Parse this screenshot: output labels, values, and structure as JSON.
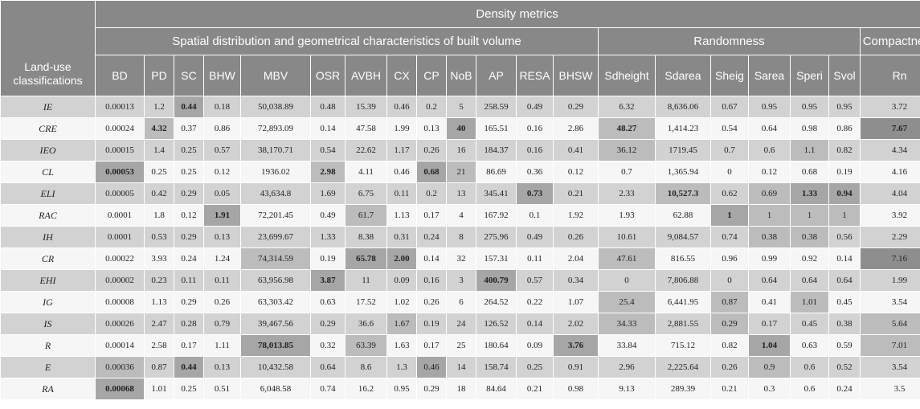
{
  "header": {
    "group_title": "Density metrics",
    "subgroups": {
      "spatial": "Spatial distribution and geometrical characteristics of built volume",
      "randomness": "Randomness",
      "compactness": "Compactness"
    },
    "landuse_label": "Land-use classifications",
    "columns": [
      "BD",
      "PD",
      "SC",
      "BHW",
      "MBV",
      "OSR",
      "AVBH",
      "CX",
      "CP",
      "NoB",
      "AP",
      "RESA",
      "BHSW",
      "Sdheight",
      "Sdarea",
      "Sheig",
      "Sarea",
      "Speri",
      "Svol",
      "Rn"
    ]
  },
  "rows": [
    {
      "label": "IE",
      "cells": [
        "0.00013",
        "1.2",
        "0.44",
        "0.18",
        "50,038.89",
        "0.48",
        "15.39",
        "0.46",
        "0.2",
        "5",
        "258.59",
        "0.49",
        "0.29",
        "6.32",
        "8,636.06",
        "0.67",
        "0.95",
        "0.95",
        "0.95",
        "3.72"
      ]
    },
    {
      "label": "CRE",
      "cells": [
        "0.00024",
        "4.32",
        "0.37",
        "0.86",
        "72,893.09",
        "0.14",
        "47.58",
        "1.99",
        "0.13",
        "40",
        "165.51",
        "0.16",
        "2.86",
        "48.27",
        "1,414.23",
        "0.54",
        "0.64",
        "0.98",
        "0.86",
        "7.67"
      ]
    },
    {
      "label": "IEO",
      "cells": [
        "0.00015",
        "1.4",
        "0.25",
        "0.57",
        "38,170.71",
        "0.54",
        "22.62",
        "1.17",
        "0.26",
        "16",
        "184.37",
        "0.16",
        "0.41",
        "36.12",
        "1719.45",
        "0.7",
        "0.6",
        "1.1",
        "0.82",
        "4.34"
      ]
    },
    {
      "label": "CL",
      "cells": [
        "0.00053",
        "0.25",
        "0.25",
        "0.12",
        "1936.02",
        "2.98",
        "4.11",
        "0.46",
        "0.68",
        "21",
        "86.69",
        "0.36",
        "0.12",
        "0.7",
        "1,365.94",
        "0",
        "0.12",
        "0.68",
        "0.19",
        "4.16"
      ]
    },
    {
      "label": "ELI",
      "cells": [
        "0.00005",
        "0.42",
        "0.29",
        "0.05",
        "43,634.8",
        "1.69",
        "6.75",
        "0.11",
        "0.2",
        "13",
        "345.41",
        "0.73",
        "0.21",
        "2.33",
        "10,527.3",
        "0.62",
        "0.69",
        "1.33",
        "0.94",
        "4.04"
      ]
    },
    {
      "label": "RAC",
      "cells": [
        "0.0001",
        "1.8",
        "0.12",
        "1.91",
        "72,201.45",
        "0.49",
        "61.7",
        "1.13",
        "0.17",
        "4",
        "167.92",
        "0.1",
        "1.92",
        "1.93",
        "62.88",
        "1",
        "1",
        "1",
        "1",
        "3.92"
      ]
    },
    {
      "label": "IH",
      "cells": [
        "0.0001",
        "0.53",
        "0.29",
        "0.13",
        "23,699.67",
        "1.33",
        "8.38",
        "0.31",
        "0.24",
        "8",
        "275.96",
        "0.49",
        "0.26",
        "10.61",
        "9,084.57",
        "0.74",
        "0.38",
        "0.38",
        "0.56",
        "2.29"
      ]
    },
    {
      "label": "CR",
      "cells": [
        "0.00022",
        "3.93",
        "0.24",
        "1.24",
        "74,314.59",
        "0.19",
        "65.78",
        "2.00",
        "0.14",
        "32",
        "157.31",
        "0.11",
        "2.04",
        "47.61",
        "816.55",
        "0.96",
        "0.99",
        "0.92",
        "0.14",
        "7.16"
      ]
    },
    {
      "label": "EHI",
      "cells": [
        "0.00002",
        "0.23",
        "0.11",
        "0.11",
        "63,956.98",
        "3.87",
        "11",
        "0.09",
        "0.16",
        "3",
        "400.79",
        "0.57",
        "0.34",
        "0",
        "7,806.88",
        "0",
        "0.64",
        "0.64",
        "0.64",
        "1.99"
      ]
    },
    {
      "label": "IG",
      "cells": [
        "0.00008",
        "1.13",
        "0.29",
        "0.26",
        "63,303.42",
        "0.63",
        "17.52",
        "1.02",
        "0.26",
        "6",
        "264.52",
        "0.22",
        "1.07",
        "25.4",
        "6,441.95",
        "0.87",
        "0.41",
        "1.01",
        "0.45",
        "3.54"
      ]
    },
    {
      "label": "IS",
      "cells": [
        "0.00026",
        "2.47",
        "0.28",
        "0.79",
        "39,467.56",
        "0.29",
        "36.6",
        "1.67",
        "0.19",
        "24",
        "126.52",
        "0.14",
        "2.02",
        "34.33",
        "2,881.55",
        "0.29",
        "0.17",
        "0.45",
        "0.38",
        "5.64"
      ]
    },
    {
      "label": "R",
      "cells": [
        "0.00014",
        "2.58",
        "0.17",
        "1.11",
        "78,013.85",
        "0.32",
        "63.39",
        "1.63",
        "0.17",
        "25",
        "180.64",
        "0.09",
        "3.76",
        "33.84",
        "715.12",
        "0.82",
        "1.04",
        "0.63",
        "0.59",
        "7.01"
      ]
    },
    {
      "label": "E",
      "cells": [
        "0.00036",
        "0.87",
        "0.44",
        "0.13",
        "10,432.58",
        "0.64",
        "8.6",
        "1.3",
        "0.46",
        "14",
        "158.74",
        "0.25",
        "0.91",
        "2.96",
        "2,225.64",
        "0.26",
        "0.9",
        "0.6",
        "0.52",
        "3.54"
      ]
    },
    {
      "label": "RA",
      "cells": [
        "0.00068",
        "1.01",
        "0.25",
        "0.51",
        "6,048.58",
        "0.74",
        "16.2",
        "0.95",
        "0.29",
        "18",
        "84.64",
        "0.21",
        "0.98",
        "9.13",
        "289.39",
        "0.21",
        "0.3",
        "0.6",
        "0.24",
        "3.5"
      ]
    }
  ]
}
